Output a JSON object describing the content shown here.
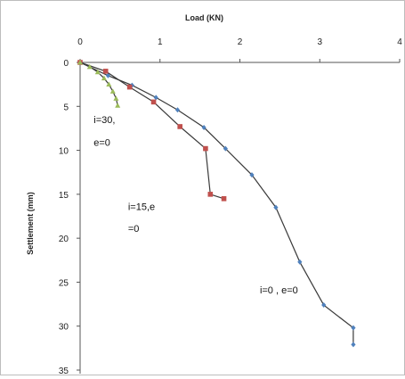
{
  "chart_data": {
    "type": "scatter",
    "xlabel": "Load (KN)",
    "ylabel": "Settlement (mm)",
    "xlim": [
      0,
      4
    ],
    "ylim": [
      0,
      35
    ],
    "y_axis_inverted": true,
    "x_axis_position": "top",
    "x_ticks": [
      "0",
      "1",
      "2",
      "3",
      "4"
    ],
    "y_ticks": [
      "0",
      "5",
      "10",
      "15",
      "20",
      "25",
      "30",
      "35"
    ],
    "grid": false,
    "legend": "none",
    "series": [
      {
        "name": "i=0 , e=0",
        "color": "#4f81bd",
        "marker": "diamond",
        "points": [
          [
            0,
            0
          ],
          [
            0.35,
            1.5
          ],
          [
            0.65,
            2.6
          ],
          [
            0.95,
            4.0
          ],
          [
            1.22,
            5.4
          ],
          [
            1.55,
            7.4
          ],
          [
            1.82,
            9.8
          ],
          [
            2.15,
            12.8
          ],
          [
            2.45,
            16.5
          ],
          [
            2.75,
            22.7
          ],
          [
            3.05,
            27.6
          ],
          [
            3.42,
            30.2
          ],
          [
            3.42,
            32.1
          ]
        ]
      },
      {
        "name": "i=15,e =0",
        "color": "#c0504d",
        "marker": "square",
        "points": [
          [
            0,
            0
          ],
          [
            0.32,
            1.0
          ],
          [
            0.62,
            2.8
          ],
          [
            0.92,
            4.5
          ],
          [
            1.25,
            7.3
          ],
          [
            1.57,
            9.8
          ],
          [
            1.63,
            15.0
          ],
          [
            1.8,
            15.5
          ]
        ]
      },
      {
        "name": "i=30, e=0",
        "color": "#9bbb59",
        "marker": "triangle",
        "points": [
          [
            0,
            0
          ],
          [
            0.12,
            0.5
          ],
          [
            0.22,
            1.1
          ],
          [
            0.3,
            1.8
          ],
          [
            0.36,
            2.5
          ],
          [
            0.41,
            3.3
          ],
          [
            0.45,
            4.1
          ],
          [
            0.47,
            4.9
          ]
        ]
      }
    ],
    "annotations": [
      {
        "text": "i=30,",
        "x": 0.17,
        "y": 6.9
      },
      {
        "text": "e=0",
        "x": 0.17,
        "y": 9.5
      },
      {
        "text": "i=15,e",
        "x": 0.6,
        "y": 16.8
      },
      {
        "text": "=0",
        "x": 0.6,
        "y": 19.3
      },
      {
        "text": "i=0 , e=0",
        "x": 2.25,
        "y": 26.3
      }
    ]
  }
}
